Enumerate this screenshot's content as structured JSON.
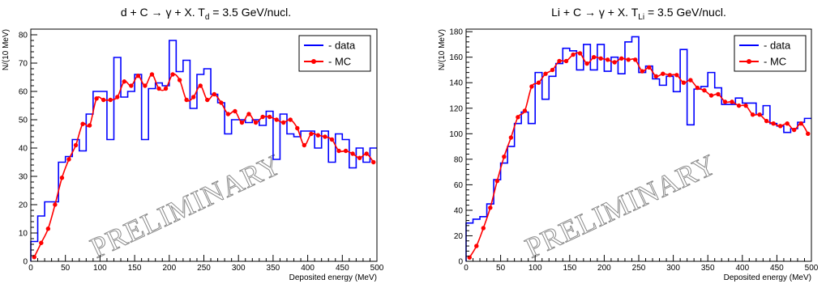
{
  "chart_data": [
    {
      "type": "line",
      "title_main": "d + C → γ + X. T",
      "title_sub": "d",
      "title_tail": " = 3.5 GeV/nucl.",
      "xlabel": "Deposited energy (MeV)",
      "ylabel": "N/(10 MeV)",
      "xlim": [
        0,
        500
      ],
      "ylim": [
        0,
        82
      ],
      "xticks": [
        0,
        50,
        100,
        150,
        200,
        250,
        300,
        350,
        400,
        450,
        500
      ],
      "yticks": [
        0,
        10,
        20,
        30,
        40,
        50,
        60,
        70,
        80
      ],
      "watermark": "PRELIMINARY",
      "legend_position": "top-right",
      "colors": {
        "data": "#0000ff",
        "mc": "#ff0000"
      },
      "series": [
        {
          "name": "- data",
          "style": "step",
          "bin_width": 10,
          "values": [
            7,
            16,
            21,
            21,
            35,
            37,
            43,
            39,
            52,
            60,
            60,
            43,
            72,
            58,
            60,
            66,
            43,
            61,
            63,
            62,
            78,
            67,
            71,
            54,
            66,
            68,
            59,
            56,
            45,
            50,
            50,
            49,
            50,
            48,
            53,
            36,
            52,
            45,
            44,
            46,
            46,
            40,
            46,
            35,
            45,
            43,
            33,
            40,
            35,
            40
          ]
        },
        {
          "name": "- MC",
          "style": "smooth-markers",
          "x": [
            5,
            15,
            25,
            35,
            45,
            55,
            65,
            75,
            85,
            95,
            105,
            115,
            125,
            135,
            145,
            155,
            165,
            175,
            185,
            195,
            205,
            215,
            225,
            235,
            245,
            255,
            265,
            275,
            285,
            295,
            305,
            315,
            325,
            335,
            345,
            355,
            365,
            375,
            385,
            395,
            405,
            415,
            425,
            435,
            445,
            455,
            465,
            475,
            485,
            495
          ],
          "y": [
            1.5,
            6.5,
            11.5,
            20,
            29.5,
            36,
            41,
            48.5,
            48,
            57.5,
            57,
            57,
            58,
            63.5,
            62,
            65.5,
            62,
            66,
            61,
            61,
            66,
            64,
            57,
            58,
            62,
            57,
            59,
            56,
            52,
            53,
            49,
            52,
            49,
            51,
            51,
            50,
            49,
            50,
            47,
            41,
            45,
            44.5,
            44,
            43,
            39,
            39,
            38,
            36.5,
            38,
            35
          ]
        }
      ]
    },
    {
      "type": "line",
      "title_main": "Li + C → γ + X. T",
      "title_sub": "Li",
      "title_tail": " = 3.5 GeV/nucl.",
      "xlabel": "Deposited energy (MeV)",
      "ylabel": "N/(10 MeV)",
      "xlim": [
        0,
        500
      ],
      "ylim": [
        0,
        182
      ],
      "xticks": [
        0,
        50,
        100,
        150,
        200,
        250,
        300,
        350,
        400,
        450,
        500
      ],
      "yticks": [
        0,
        20,
        40,
        60,
        80,
        100,
        120,
        140,
        160,
        180
      ],
      "watermark": "PRELIMINARY",
      "legend_position": "top-right",
      "colors": {
        "data": "#0000ff",
        "mc": "#ff0000"
      },
      "series": [
        {
          "name": "- data",
          "style": "step",
          "bin_width": 10,
          "values": [
            30,
            33,
            35,
            45,
            64,
            77,
            90,
            108,
            117,
            108,
            148,
            127,
            145,
            155,
            167,
            165,
            150,
            170,
            150,
            170,
            149,
            160,
            147,
            172,
            176,
            148,
            153,
            143,
            138,
            145,
            133,
            166,
            107,
            135,
            137,
            148,
            136,
            123,
            123,
            128,
            124,
            124,
            115,
            122,
            108,
            106,
            101,
            104,
            109,
            112
          ]
        },
        {
          "name": "- MC",
          "style": "smooth-markers",
          "x": [
            5,
            15,
            25,
            35,
            45,
            55,
            65,
            75,
            85,
            95,
            105,
            115,
            125,
            135,
            145,
            155,
            165,
            175,
            185,
            195,
            205,
            215,
            225,
            235,
            245,
            255,
            265,
            275,
            285,
            295,
            305,
            315,
            325,
            335,
            345,
            355,
            365,
            375,
            385,
            395,
            405,
            415,
            425,
            435,
            445,
            455,
            465,
            475,
            485,
            495
          ],
          "y": [
            3,
            12,
            26,
            42,
            63,
            82,
            97,
            113,
            118,
            137,
            140,
            147,
            150,
            157,
            157,
            162,
            163,
            155,
            160,
            159,
            158,
            156,
            159,
            158,
            158,
            149,
            152,
            145,
            147,
            146,
            146,
            140,
            142,
            136,
            134,
            130,
            131,
            125,
            125,
            122,
            122,
            115,
            115,
            110,
            108,
            106,
            108,
            103,
            108,
            100
          ]
        }
      ]
    }
  ]
}
